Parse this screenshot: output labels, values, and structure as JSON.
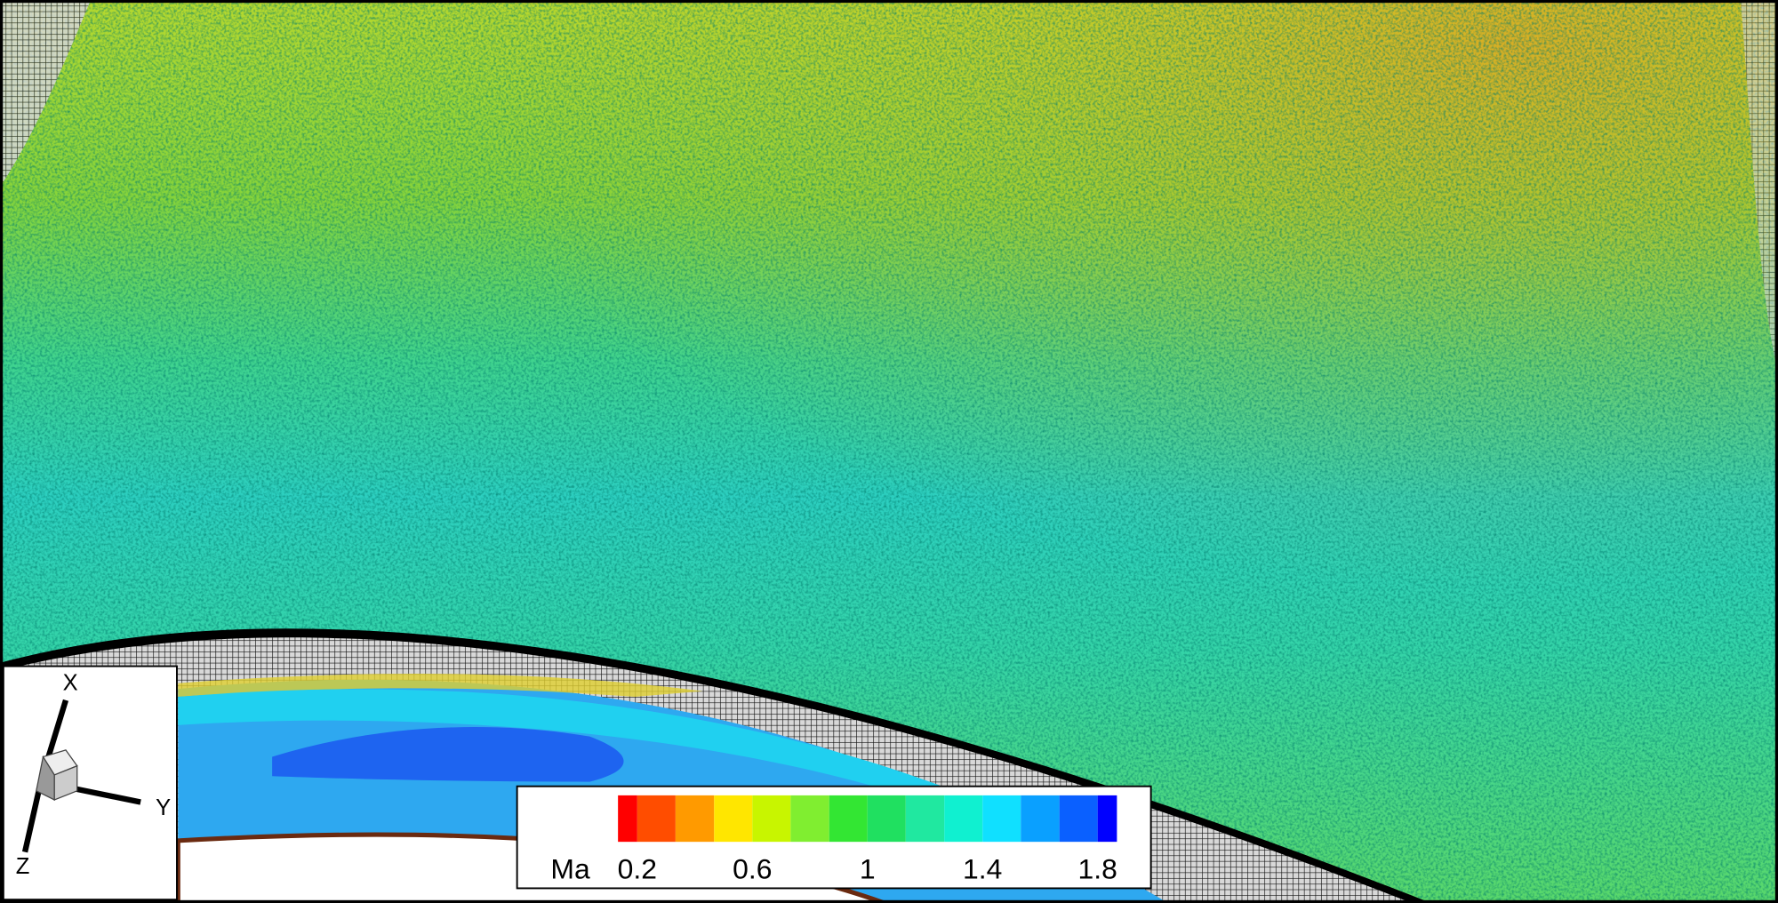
{
  "colorbar": {
    "label": "Ma",
    "range": [
      0.133,
      1.867
    ],
    "levels": [
      0.2,
      0.333,
      0.467,
      0.6,
      0.733,
      0.867,
      1,
      1.133,
      1.267,
      1.4,
      1.533,
      1.667,
      1.8
    ],
    "colors": [
      "#ff0000",
      "#ff4d00",
      "#ff9a00",
      "#ffe600",
      "#c8f500",
      "#80ee30",
      "#33e633",
      "#20e060",
      "#20e8a0",
      "#10f0d0",
      "#10e0ff",
      "#0aa0ff",
      "#0a60ff",
      "#0000ff"
    ],
    "ticks": [
      0.2,
      0.6,
      1,
      1.4,
      1.8
    ]
  },
  "axes_triad": {
    "labels": [
      "X",
      "Y",
      "Z"
    ]
  }
}
